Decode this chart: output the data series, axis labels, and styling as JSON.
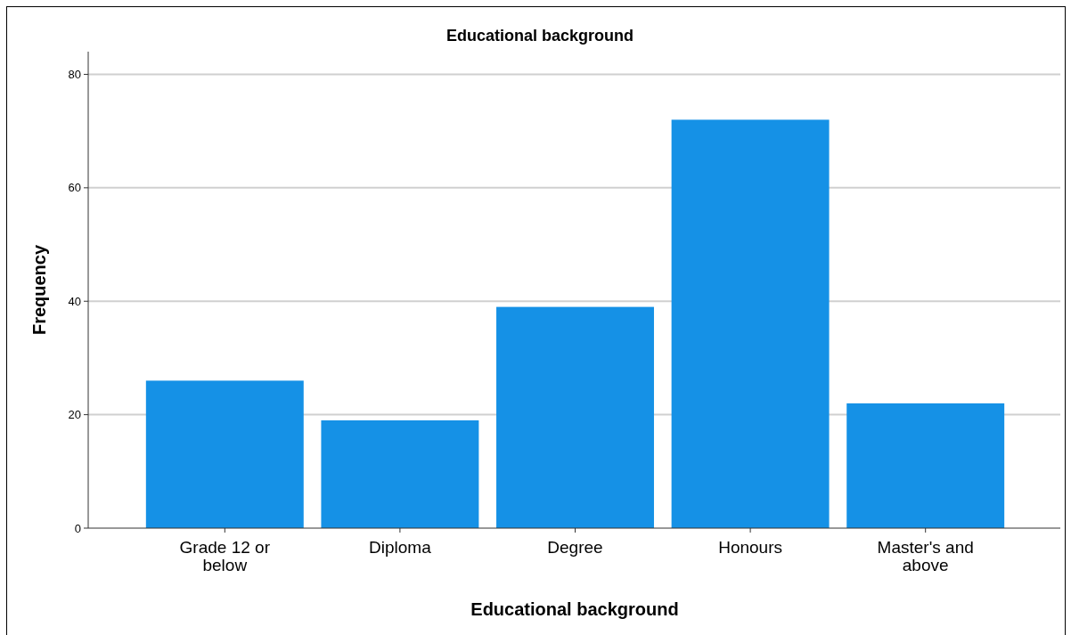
{
  "chart_data": {
    "type": "bar",
    "title": "Educational background",
    "xlabel": "Educational background",
    "ylabel": "Frequency",
    "categories": [
      "Grade 12 or below",
      "Diploma",
      "Degree",
      "Honours",
      "Master's and above"
    ],
    "values": [
      26,
      19,
      39,
      72,
      22
    ],
    "color": "#1591e6",
    "ylim": [
      0,
      84
    ],
    "yticks": [
      0,
      20,
      40,
      60,
      80
    ],
    "grid": "y"
  }
}
